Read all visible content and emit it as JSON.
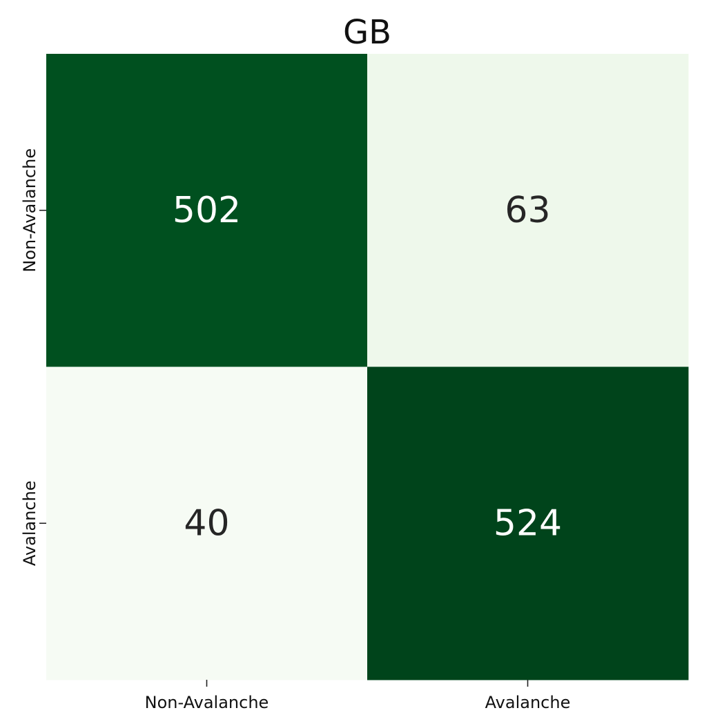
{
  "chart_data": {
    "type": "heatmap",
    "title": "GB",
    "xlabel": "",
    "ylabel": "",
    "x_categories": [
      "Non-Avalanche",
      "Avalanche"
    ],
    "y_categories": [
      "Non-Avalanche",
      "Avalanche"
    ],
    "values": [
      [
        502,
        63
      ],
      [
        40,
        524
      ]
    ],
    "colorscale": "Greens",
    "cell_colors": [
      [
        "#00501F",
        "#EEF8EB"
      ],
      [
        "#F6FBF4",
        "#00441B"
      ]
    ],
    "label_colors": [
      [
        "#ffffff",
        "#262626"
      ],
      [
        "#262626",
        "#ffffff"
      ]
    ],
    "colorbar": false,
    "grid": false
  }
}
